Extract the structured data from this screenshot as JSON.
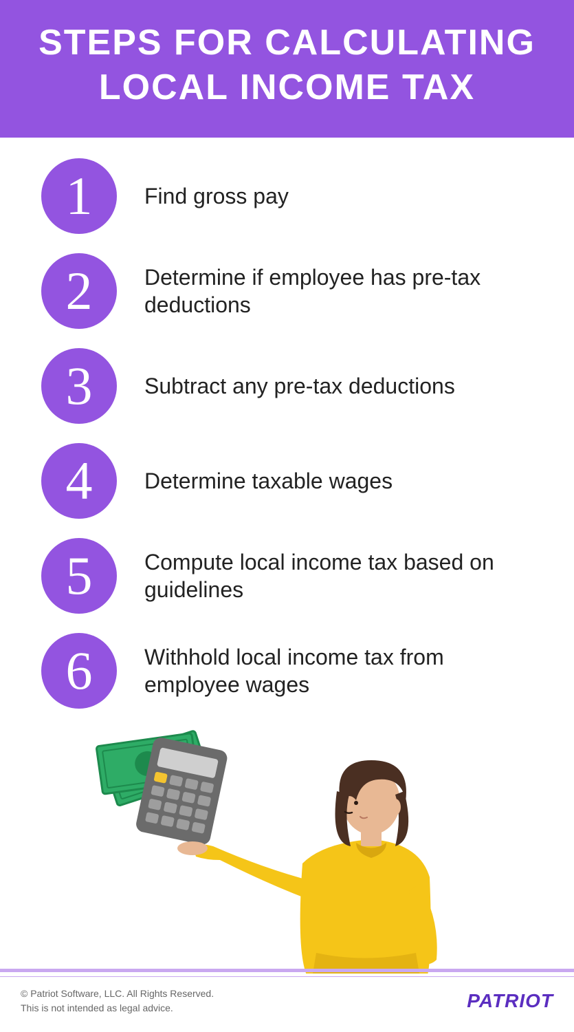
{
  "colors": {
    "header_bg": "#9354e0",
    "circle_bg": "#9354e0",
    "circle_text": "#ffffff",
    "header_text": "#ffffff",
    "step_text": "#222222",
    "footer_line": "#c9a8f0",
    "footer_text": "#666666",
    "logo_color": "#5b2ec0",
    "money_green": "#2eac66",
    "money_green_dark": "#1d8a4d",
    "calc_body": "#6b6b6b",
    "calc_screen": "#cfcfcf",
    "calc_yellow": "#f4c430",
    "skin": "#e8b894",
    "hair": "#4a2f22",
    "sweater": "#f5c518",
    "sweater_shadow": "#d9a70f"
  },
  "typography": {
    "title_size": 52,
    "step_number_size": 78,
    "step_text_size": 32,
    "footer_text_size": 14,
    "logo_size": 28
  },
  "layout": {
    "circle_diameter": 110
  },
  "header": {
    "title": "STEPS FOR CALCULATING LOCAL INCOME TAX"
  },
  "steps": [
    {
      "num": "1",
      "text": "Find gross pay"
    },
    {
      "num": "2",
      "text": "Determine if employee has pre-tax deductions"
    },
    {
      "num": "3",
      "text": "Subtract any pre-tax deductions"
    },
    {
      "num": "4",
      "text": "Determine taxable wages"
    },
    {
      "num": "5",
      "text": "Compute local income tax based on guidelines"
    },
    {
      "num": "6",
      "text": "Withhold local income tax from employee wages"
    }
  ],
  "footer": {
    "copyright": "© Patriot Software, LLC. All Rights Reserved.",
    "disclaimer": "This is not intended as legal advice.",
    "logo": "PATRIOT"
  }
}
